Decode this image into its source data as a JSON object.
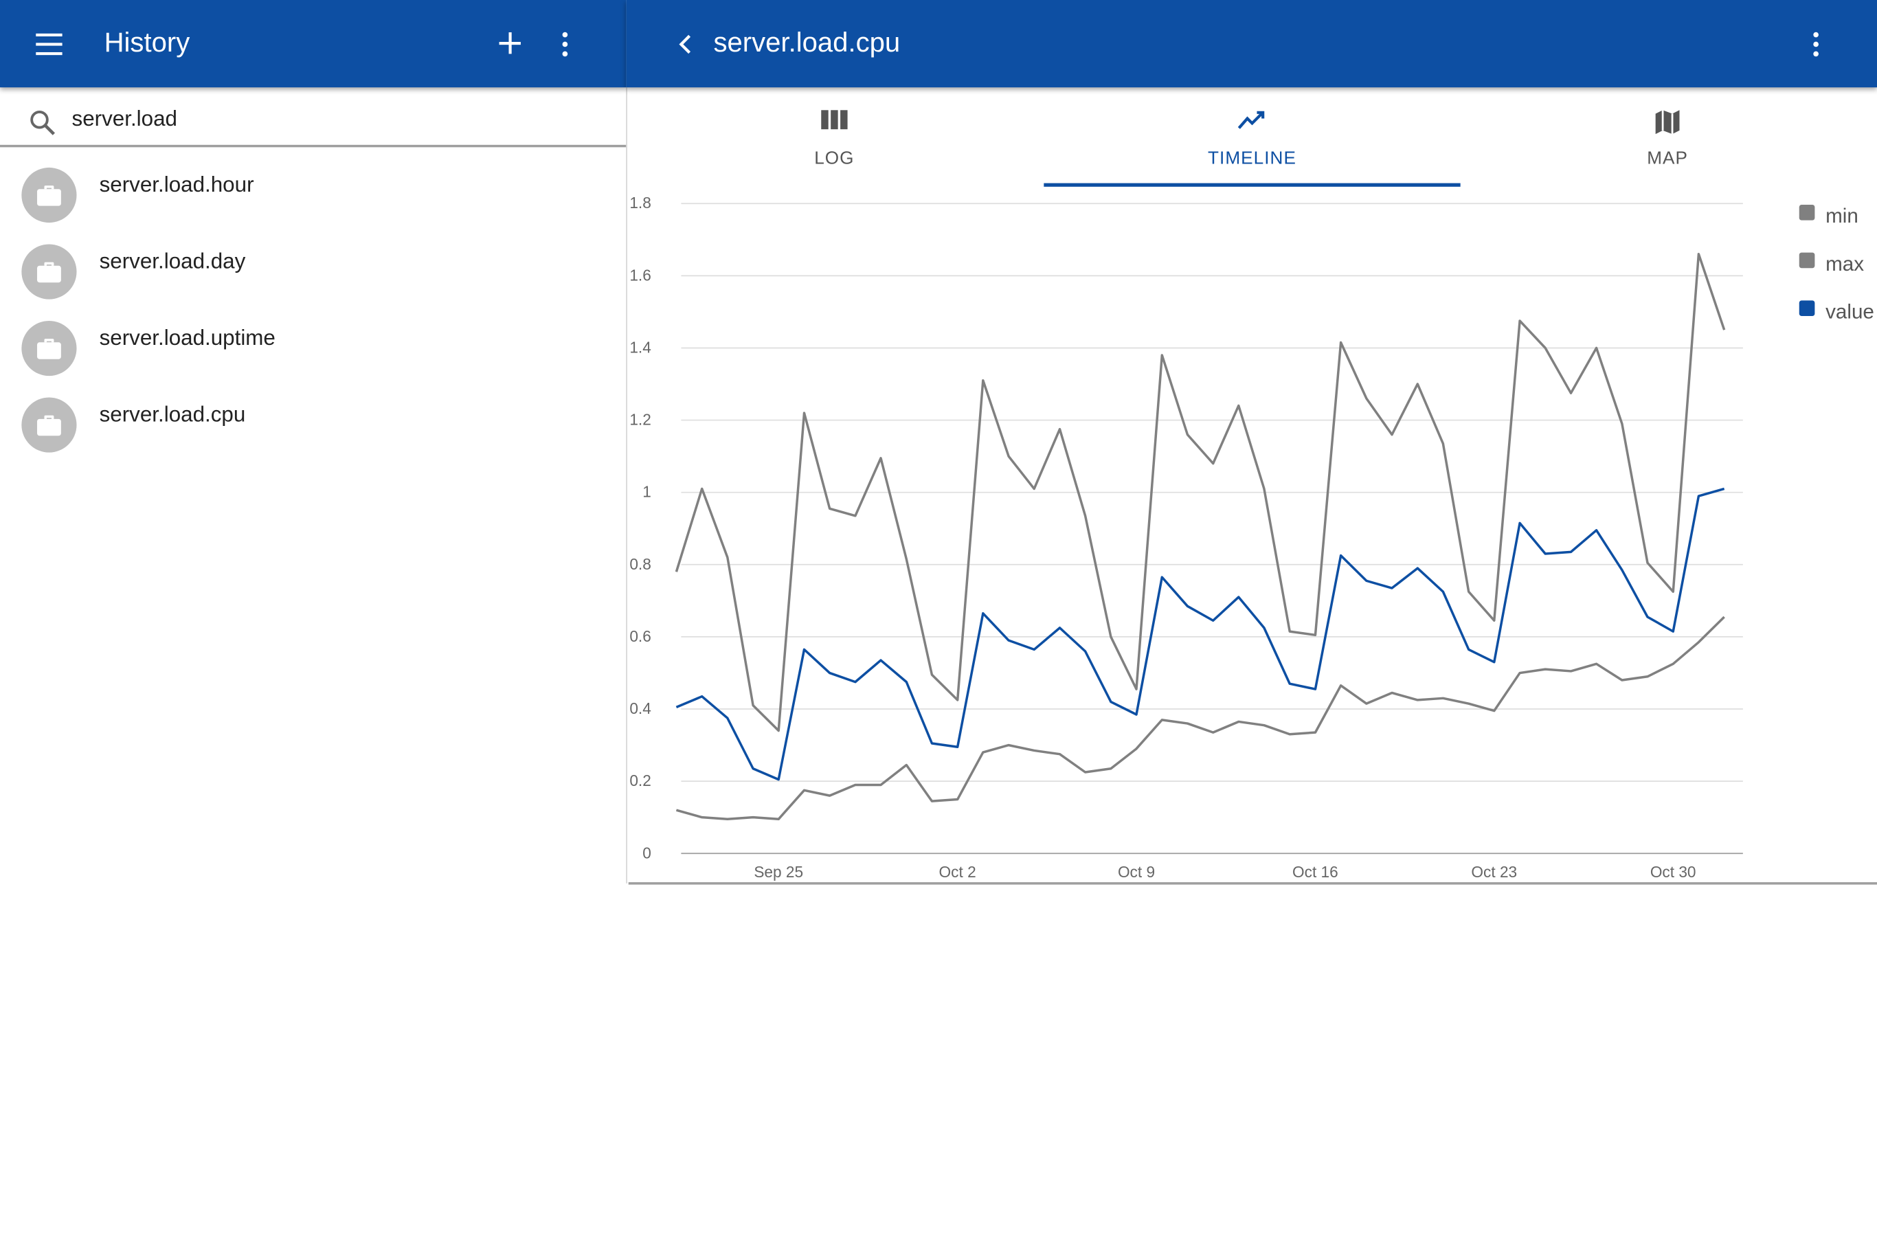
{
  "app": {
    "left_title": "History",
    "right_title": "server.load.cpu",
    "accent_color": "#0d4fa3"
  },
  "icons": {
    "menu": "menu-icon",
    "add": "plus-icon",
    "more": "more-vert-icon",
    "back": "chevron-left-icon",
    "search": "search-icon",
    "item": "briefcase-icon",
    "log_tab": "columns-icon",
    "timeline_tab": "trending-line-icon",
    "map_tab": "map-icon"
  },
  "search": {
    "value": "server.load"
  },
  "sidebar": {
    "items": [
      {
        "label": "server.load.hour"
      },
      {
        "label": "server.load.day"
      },
      {
        "label": "server.load.uptime"
      },
      {
        "label": "server.load.cpu"
      }
    ]
  },
  "tabs": [
    {
      "label": "LOG",
      "selected": false
    },
    {
      "label": "TIMELINE",
      "selected": true
    },
    {
      "label": "MAP",
      "selected": false
    }
  ],
  "chart_data": {
    "type": "line",
    "x_type": "date",
    "x": [
      "Sep 21",
      "Sep 22",
      "Sep 23",
      "Sep 24",
      "Sep 25",
      "Sep 26",
      "Sep 27",
      "Sep 28",
      "Sep 29",
      "Sep 30",
      "Oct 1",
      "Oct 2",
      "Oct 3",
      "Oct 4",
      "Oct 5",
      "Oct 6",
      "Oct 7",
      "Oct 8",
      "Oct 9",
      "Oct 10",
      "Oct 11",
      "Oct 12",
      "Oct 13",
      "Oct 14",
      "Oct 15",
      "Oct 16",
      "Oct 17",
      "Oct 18",
      "Oct 19",
      "Oct 20",
      "Oct 21",
      "Oct 22",
      "Oct 23",
      "Oct 24",
      "Oct 25",
      "Oct 26",
      "Oct 27",
      "Oct 28",
      "Oct 29",
      "Oct 30",
      "Oct 31",
      "Nov 1"
    ],
    "series": [
      {
        "name": "min",
        "color": "#808080",
        "values": [
          0.12,
          0.1,
          0.095,
          0.1,
          0.095,
          0.175,
          0.16,
          0.19,
          0.19,
          0.245,
          0.145,
          0.15,
          0.28,
          0.3,
          0.285,
          0.275,
          0.225,
          0.235,
          0.29,
          0.37,
          0.36,
          0.335,
          0.365,
          0.355,
          0.33,
          0.335,
          0.465,
          0.415,
          0.445,
          0.425,
          0.43,
          0.415,
          0.395,
          0.5,
          0.51,
          0.505,
          0.525,
          0.48,
          0.49,
          0.525,
          0.585,
          0.655
        ]
      },
      {
        "name": "max",
        "color": "#808080",
        "values": [
          0.78,
          1.01,
          0.82,
          0.41,
          0.34,
          1.22,
          0.955,
          0.935,
          1.095,
          0.815,
          0.495,
          0.425,
          1.31,
          1.1,
          1.01,
          1.175,
          0.935,
          0.6,
          0.455,
          1.38,
          1.16,
          1.08,
          1.24,
          1.01,
          0.615,
          0.605,
          1.415,
          1.26,
          1.16,
          1.3,
          1.135,
          0.725,
          0.645,
          1.475,
          1.4,
          1.275,
          1.4,
          1.19,
          0.805,
          0.725,
          1.66,
          1.45
        ]
      },
      {
        "name": "value",
        "color": "#0d4fa3",
        "values": [
          0.405,
          0.435,
          0.375,
          0.235,
          0.205,
          0.565,
          0.5,
          0.475,
          0.535,
          0.475,
          0.305,
          0.295,
          0.665,
          0.59,
          0.565,
          0.625,
          0.56,
          0.42,
          0.385,
          0.765,
          0.685,
          0.645,
          0.71,
          0.625,
          0.47,
          0.455,
          0.825,
          0.755,
          0.735,
          0.79,
          0.725,
          0.565,
          0.53,
          0.915,
          0.83,
          0.835,
          0.895,
          0.785,
          0.655,
          0.615,
          0.99,
          1.01
        ]
      }
    ],
    "y_ticks": [
      "0",
      "0.2",
      "0.4",
      "0.6",
      "0.8",
      "1",
      "1.2",
      "1.4",
      "1.6",
      "1.8"
    ],
    "x_ticks": [
      {
        "date": "Sep 25",
        "label": "Sep 25"
      },
      {
        "date": "Oct 2",
        "label": "Oct 2"
      },
      {
        "date": "Oct 9",
        "label": "Oct 9"
      },
      {
        "date": "Oct 16",
        "label": "Oct 16"
      },
      {
        "date": "Oct 23",
        "label": "Oct 23"
      },
      {
        "date": "Oct 30",
        "label": "Oct 30"
      }
    ],
    "ylim": [
      0,
      1.8
    ],
    "grid": true,
    "legend": "right"
  }
}
